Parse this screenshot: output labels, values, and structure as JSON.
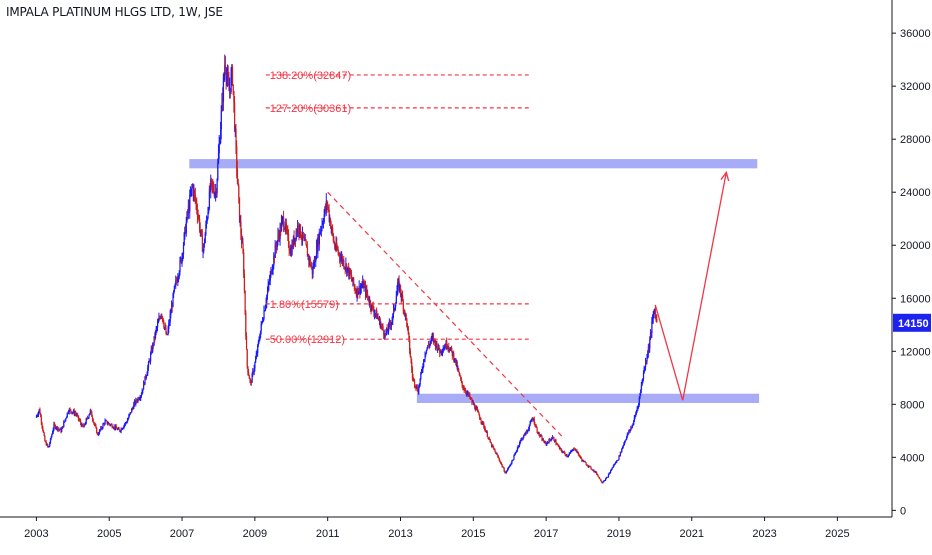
{
  "chart_data": {
    "type": "candlestick",
    "title": "IMPALA PLATINUM HLGS LTD, 1W, JSE",
    "xlabel": "",
    "ylabel": "",
    "x_ticks": [
      "2003",
      "2005",
      "2007",
      "2009",
      "2011",
      "2013",
      "2015",
      "2017",
      "2019",
      "2021",
      "2023",
      "2025"
    ],
    "y_ticks": [
      0,
      4000,
      8000,
      12000,
      16000,
      20000,
      24000,
      28000,
      32000,
      36000
    ],
    "ylim": [
      -500,
      38500
    ],
    "xlim": [
      2002.0,
      2026.5
    ],
    "last_price": 14150,
    "last_price_label": "14150",
    "colors": {
      "up": "#1a1aff",
      "down": "#cc1f1f",
      "annotation": "#f23645",
      "zone": "#9fa3f5",
      "price_tag": "#1e22ee"
    },
    "price_path": [
      [
        2003.0,
        7000
      ],
      [
        2003.1,
        7600
      ],
      [
        2003.25,
        5200
      ],
      [
        2003.35,
        4700
      ],
      [
        2003.5,
        6400
      ],
      [
        2003.7,
        6000
      ],
      [
        2003.9,
        7600
      ],
      [
        2004.1,
        7300
      ],
      [
        2004.3,
        6200
      ],
      [
        2004.5,
        7500
      ],
      [
        2004.7,
        5700
      ],
      [
        2004.9,
        6700
      ],
      [
        2005.1,
        6400
      ],
      [
        2005.3,
        6000
      ],
      [
        2005.5,
        6700
      ],
      [
        2005.7,
        8000
      ],
      [
        2005.9,
        8800
      ],
      [
        2006.1,
        11000
      ],
      [
        2006.3,
        13500
      ],
      [
        2006.45,
        15000
      ],
      [
        2006.6,
        13000
      ],
      [
        2006.8,
        16500
      ],
      [
        2007.0,
        19000
      ],
      [
        2007.15,
        22000
      ],
      [
        2007.3,
        24500
      ],
      [
        2007.45,
        22500
      ],
      [
        2007.6,
        19500
      ],
      [
        2007.8,
        24500
      ],
      [
        2007.95,
        24000
      ],
      [
        2008.1,
        30000
      ],
      [
        2008.2,
        34000
      ],
      [
        2008.3,
        31500
      ],
      [
        2008.4,
        33000
      ],
      [
        2008.5,
        27000
      ],
      [
        2008.6,
        22000
      ],
      [
        2008.7,
        19000
      ],
      [
        2008.8,
        11000
      ],
      [
        2008.9,
        9500
      ],
      [
        2009.05,
        11500
      ],
      [
        2009.2,
        14000
      ],
      [
        2009.4,
        17000
      ],
      [
        2009.6,
        20000
      ],
      [
        2009.8,
        22000
      ],
      [
        2010.0,
        19500
      ],
      [
        2010.2,
        21500
      ],
      [
        2010.4,
        20000
      ],
      [
        2010.6,
        18000
      ],
      [
        2010.8,
        21000
      ],
      [
        2011.0,
        23200
      ],
      [
        2011.2,
        20000
      ],
      [
        2011.4,
        19000
      ],
      [
        2011.6,
        18000
      ],
      [
        2011.8,
        16500
      ],
      [
        2012.0,
        17000
      ],
      [
        2012.2,
        15500
      ],
      [
        2012.4,
        14500
      ],
      [
        2012.6,
        13200
      ],
      [
        2012.8,
        14500
      ],
      [
        2012.95,
        17000
      ],
      [
        2013.0,
        16800
      ],
      [
        2013.2,
        14000
      ],
      [
        2013.35,
        10000
      ],
      [
        2013.5,
        9000
      ],
      [
        2013.7,
        12000
      ],
      [
        2013.9,
        13000
      ],
      [
        2014.1,
        12000
      ],
      [
        2014.3,
        12600
      ],
      [
        2014.5,
        11500
      ],
      [
        2014.7,
        9500
      ],
      [
        2014.9,
        8600
      ],
      [
        2015.1,
        7600
      ],
      [
        2015.3,
        6400
      ],
      [
        2015.5,
        5000
      ],
      [
        2015.7,
        4000
      ],
      [
        2015.9,
        2800
      ],
      [
        2016.1,
        3800
      ],
      [
        2016.3,
        5200
      ],
      [
        2016.5,
        6000
      ],
      [
        2016.65,
        7000
      ],
      [
        2016.8,
        5800
      ],
      [
        2017.0,
        5000
      ],
      [
        2017.2,
        5500
      ],
      [
        2017.4,
        4600
      ],
      [
        2017.6,
        4100
      ],
      [
        2017.8,
        4700
      ],
      [
        2018.0,
        3800
      ],
      [
        2018.2,
        3300
      ],
      [
        2018.4,
        2800
      ],
      [
        2018.55,
        2100
      ],
      [
        2018.7,
        2500
      ],
      [
        2018.85,
        3300
      ],
      [
        2019.0,
        3900
      ],
      [
        2019.2,
        5400
      ],
      [
        2019.4,
        6500
      ],
      [
        2019.55,
        8000
      ],
      [
        2019.7,
        10500
      ],
      [
        2019.85,
        12500
      ],
      [
        2019.95,
        14500
      ],
      [
        2020.0,
        15200
      ],
      [
        2020.05,
        14150
      ]
    ],
    "fib_levels": [
      {
        "label": "138.20%(32847)",
        "value": 32847
      },
      {
        "label": "127.20%(30361)",
        "value": 30361
      },
      {
        "label": "1.80%(15579)",
        "value": 15579
      },
      {
        "label": "50.00%(12912)",
        "value": 12912
      }
    ],
    "fib_x_range": [
      2009.3,
      2016.6
    ],
    "zones": [
      {
        "x_start": 2007.2,
        "x_end": 2022.8,
        "y_low": 25800,
        "y_high": 26500
      },
      {
        "x_start": 2013.45,
        "x_end": 2022.85,
        "y_low": 8100,
        "y_high": 8800
      }
    ],
    "trendline": {
      "from": [
        2011.0,
        24000
      ],
      "to": [
        2017.5,
        5400
      ]
    },
    "projection": [
      [
        2020.0,
        15500
      ],
      [
        2020.75,
        8300
      ],
      [
        2021.95,
        25500
      ]
    ]
  }
}
